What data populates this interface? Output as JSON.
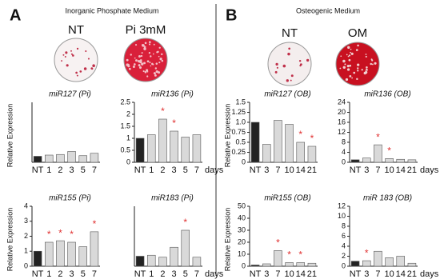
{
  "panels": [
    {
      "label": "A",
      "heading": "Inorganic Phosphate Medium",
      "dishes": [
        "NT",
        "Pi 3mM"
      ]
    },
    {
      "label": "B",
      "heading": "Osteogenic Medium",
      "dishes": [
        "NT",
        "OM"
      ]
    }
  ],
  "chart_data": [
    {
      "type": "bar",
      "title": "miR127 (Pi)",
      "ylabel": "Relative Expression",
      "categories": [
        "NT",
        "1",
        "2",
        "3",
        "5",
        "7"
      ],
      "values": [
        1.0,
        1.2,
        1.3,
        1.8,
        1.1,
        1.5
      ],
      "markers": [
        null,
        null,
        null,
        null,
        null,
        null
      ],
      "ylim": [
        0,
        10
      ],
      "colors": [
        "#222222",
        "#d9d9d9"
      ]
    },
    {
      "type": "bar",
      "title": "miR136 (Pi)",
      "xlabel": "days",
      "categories": [
        "NT",
        "1",
        "2",
        "3",
        "5",
        "7"
      ],
      "values": [
        1.0,
        1.15,
        1.8,
        1.3,
        1.05,
        1.15
      ],
      "markers": [
        null,
        null,
        "*",
        "*",
        null,
        null
      ],
      "ylim": [
        0,
        2.5
      ],
      "yticks": [
        0,
        0.5,
        1,
        1.5,
        2,
        2.5
      ],
      "colors": [
        "#222222",
        "#d9d9d9"
      ]
    },
    {
      "type": "bar",
      "title": "miR155 (Pi)",
      "ylabel": "Relative Expression",
      "categories": [
        "NT",
        "1",
        "2",
        "3",
        "5",
        "7"
      ],
      "values": [
        1.0,
        1.6,
        1.7,
        1.6,
        1.3,
        2.3
      ],
      "markers": [
        null,
        "*",
        "*",
        "*",
        null,
        "*"
      ],
      "ylim": [
        0,
        4
      ],
      "yticks": [
        0,
        1,
        2,
        3,
        4
      ],
      "colors": [
        "#222222",
        "#d9d9d9"
      ]
    },
    {
      "type": "bar",
      "title": "miR183 (Pi)",
      "xlabel": "days",
      "categories": [
        "NT",
        "1",
        "2",
        "3",
        "5",
        "7"
      ],
      "values": [
        1.0,
        1.1,
        0.9,
        1.9,
        3.6,
        0.9
      ],
      "markers": [
        null,
        null,
        null,
        null,
        "*",
        null
      ],
      "ylim": [
        0,
        6
      ],
      "colors": [
        "#222222",
        "#d9d9d9"
      ]
    },
    {
      "type": "bar",
      "title": "miR127 (OB)",
      "ylabel": "Relative Expression",
      "categories": [
        "NT",
        "3",
        "7",
        "10",
        "14",
        "21"
      ],
      "values": [
        1.0,
        0.45,
        1.05,
        0.95,
        0.5,
        0.4
      ],
      "markers": [
        null,
        null,
        null,
        null,
        "*",
        "*"
      ],
      "ylim": [
        0,
        1.5
      ],
      "yticks": [
        0,
        0.25,
        {
          "value": 0.5,
          "label": "0.5"
        },
        0.75,
        {
          "value": 1,
          "label": "1.0"
        },
        1.25,
        {
          "value": 1.5,
          "label": "1.5"
        }
      ],
      "colors": [
        "#222222",
        "#d9d9d9"
      ]
    },
    {
      "type": "bar",
      "title": "miR136 (OB)",
      "xlabel": "days",
      "categories": [
        "NT",
        "3",
        "7",
        "10",
        "14",
        "21"
      ],
      "values": [
        1.0,
        1.7,
        7.0,
        1.5,
        1.2,
        1.0
      ],
      "markers": [
        null,
        null,
        "*",
        "*",
        null,
        null
      ],
      "ylim": [
        0,
        24
      ],
      "yticks": [
        0,
        4,
        8,
        12,
        16,
        20,
        24
      ],
      "colors": [
        "#222222",
        "#d9d9d9"
      ]
    },
    {
      "type": "bar",
      "title": "miR155 (OB)",
      "ylabel": "Relative Expression",
      "categories": [
        "NT",
        "3",
        "7",
        "10",
        "14",
        "21"
      ],
      "values": [
        1.0,
        2.0,
        13.0,
        3.0,
        3.0,
        2.5
      ],
      "markers": [
        null,
        null,
        "*",
        "*",
        "*",
        null
      ],
      "ylim": [
        0,
        50
      ],
      "yticks": [
        0,
        10,
        20,
        30,
        40,
        50
      ],
      "colors": [
        "#222222",
        "#d9d9d9"
      ]
    },
    {
      "type": "bar",
      "title": "miR 183 (OB)",
      "xlabel": "days",
      "categories": [
        "NT",
        "3",
        "7",
        "10",
        "14",
        "21"
      ],
      "values": [
        1.0,
        1.1,
        3.0,
        1.7,
        2.0,
        0.6
      ],
      "markers": [
        null,
        "*",
        null,
        null,
        null,
        null
      ],
      "ylim": [
        0,
        12
      ],
      "yticks": [
        0,
        2,
        4,
        6,
        8,
        10,
        12
      ],
      "colors": [
        "#222222",
        "#d9d9d9"
      ]
    }
  ]
}
